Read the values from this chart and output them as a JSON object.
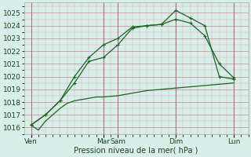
{
  "xlabel": "Pression niveau de la mer( hPa )",
  "bg_color": "#d8eee8",
  "grid_color_major": "#cc8899",
  "grid_color_minor": "#ddaabb",
  "line_color": "#1a6620",
  "ylim": [
    1015.5,
    1025.8
  ],
  "yticks": [
    1016,
    1017,
    1018,
    1019,
    1020,
    1021,
    1022,
    1023,
    1024,
    1025
  ],
  "day_labels": [
    "Ven",
    "Mar",
    "Sam",
    "Dim",
    "Lun"
  ],
  "day_positions": [
    0,
    0.417,
    0.5,
    0.833,
    1.167
  ],
  "xlim": [
    -0.04,
    1.25
  ],
  "line1_x": [
    0,
    0.042,
    0.083,
    0.125,
    0.167,
    0.208,
    0.25,
    0.292,
    0.333,
    0.375,
    0.417,
    0.5,
    0.583,
    0.667,
    0.75,
    0.833,
    0.917,
    1.0,
    1.083,
    1.167
  ],
  "line1_y": [
    1016.2,
    1015.8,
    1016.5,
    1017.0,
    1017.5,
    1017.9,
    1018.1,
    1018.2,
    1018.3,
    1018.4,
    1018.4,
    1018.5,
    1018.7,
    1018.9,
    1019.0,
    1019.1,
    1019.2,
    1019.3,
    1019.4,
    1019.5
  ],
  "line2_x": [
    0,
    0.083,
    0.167,
    0.25,
    0.333,
    0.417,
    0.5,
    0.583,
    0.667,
    0.75,
    0.833,
    0.917,
    1.0,
    1.083,
    1.167
  ],
  "line2_y": [
    1016.2,
    1017.0,
    1018.1,
    1019.5,
    1021.2,
    1021.5,
    1022.5,
    1023.8,
    1024.0,
    1024.1,
    1025.2,
    1024.6,
    1024.0,
    1020.0,
    1019.8
  ],
  "line3_x": [
    0,
    0.083,
    0.167,
    0.25,
    0.333,
    0.417,
    0.5,
    0.583,
    0.667,
    0.75,
    0.833,
    0.917,
    1.0,
    1.083,
    1.167
  ],
  "line3_y": [
    1016.2,
    1017.0,
    1018.1,
    1020.0,
    1021.5,
    1022.5,
    1023.0,
    1023.9,
    1024.0,
    1024.1,
    1024.5,
    1024.2,
    1023.2,
    1021.0,
    1019.9
  ]
}
